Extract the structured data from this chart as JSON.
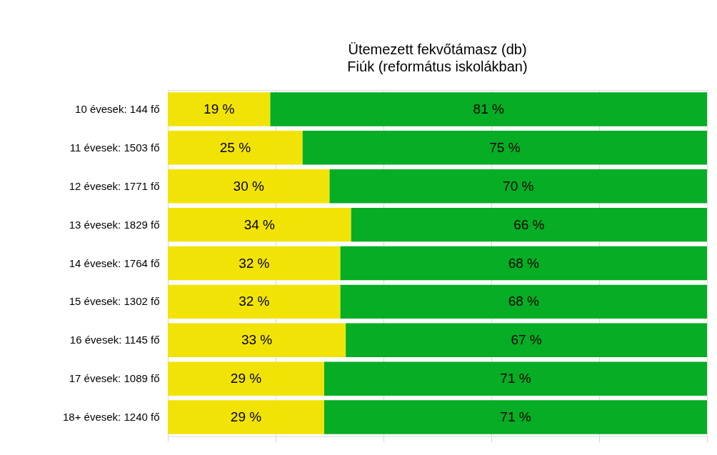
{
  "chart_data": {
    "type": "bar",
    "orientation": "horizontal",
    "stacked": true,
    "title": "Ütemezett fekvőtámasz (db)",
    "subtitle": "Fiúk (református iskolákban)",
    "categories": [
      "10 évesek: 144 fő",
      "11 évesek: 1503 fő",
      "12 évesek: 1771 fő",
      "13 évesek: 1829 fő",
      "14 évesek: 1764 fő",
      "15 évesek: 1302 fő",
      "16 évesek: 1145 fő",
      "17 évesek: 1089 fő",
      "18+ évesek: 1240 fő"
    ],
    "series": [
      {
        "color": "#f2e307",
        "values": [
          19,
          25,
          30,
          34,
          32,
          32,
          33,
          29,
          29
        ],
        "value_labels": [
          "19 %",
          "25 %",
          "30 %",
          "34 %",
          "32 %",
          "32 %",
          "33 %",
          "29 %",
          "29 %"
        ]
      },
      {
        "color": "#06ad25",
        "values": [
          81,
          75,
          70,
          66,
          68,
          68,
          67,
          71,
          71
        ],
        "value_labels": [
          "81 %",
          "75 %",
          "70 %",
          "66 %",
          "68 %",
          "68 %",
          "67 %",
          "71 %",
          "71 %"
        ]
      }
    ],
    "xlim": [
      0,
      100
    ],
    "xticks": [
      {
        "value": 0,
        "label": null
      },
      {
        "value": 20,
        "label": null
      },
      {
        "value": 40,
        "label": null
      },
      {
        "value": 60,
        "label": null
      },
      {
        "value": 80,
        "label": null
      },
      {
        "value": 100,
        "label": null
      }
    ],
    "grid": "x",
    "tick_labels": "y"
  }
}
